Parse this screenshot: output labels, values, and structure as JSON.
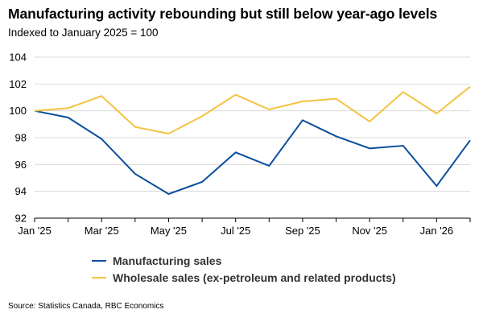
{
  "header": {
    "title": "Manufacturing activity rebounding but still below year-ago levels",
    "subtitle": "Indexed to January 2025 = 100"
  },
  "source": "Source: Statistics Canada, RBC Economics",
  "chart_data": {
    "type": "line",
    "x": [
      "Jan '25",
      "Feb '25",
      "Mar '25",
      "Apr '25",
      "May '25",
      "Jun '25",
      "Jul '25",
      "Aug '25",
      "Sep '25",
      "Oct '25",
      "Nov '25",
      "Dec '25",
      "Jan '26",
      "Feb '26"
    ],
    "xticklabels": [
      "Jan '25",
      "Mar '25",
      "May '25",
      "Jul '25",
      "Sep '25",
      "Nov '25",
      "Jan '26"
    ],
    "yticks": [
      92,
      94,
      96,
      98,
      100,
      102,
      104
    ],
    "ylim": [
      92,
      104
    ],
    "grid": true,
    "legend_position": "bottom",
    "series": [
      {
        "name": "Manufacturing sales",
        "color": "#0b4f9c",
        "values": [
          100.0,
          99.5,
          97.9,
          95.3,
          93.8,
          94.7,
          96.9,
          95.9,
          99.3,
          98.1,
          97.2,
          97.4,
          94.4,
          97.8
        ]
      },
      {
        "name": "Wholesale sales (ex-petroleum and related products)",
        "color": "#f5c242",
        "values": [
          100.0,
          100.2,
          101.1,
          98.8,
          98.3,
          99.6,
          101.2,
          100.1,
          100.7,
          100.9,
          99.2,
          101.4,
          99.8,
          101.8
        ]
      }
    ]
  }
}
